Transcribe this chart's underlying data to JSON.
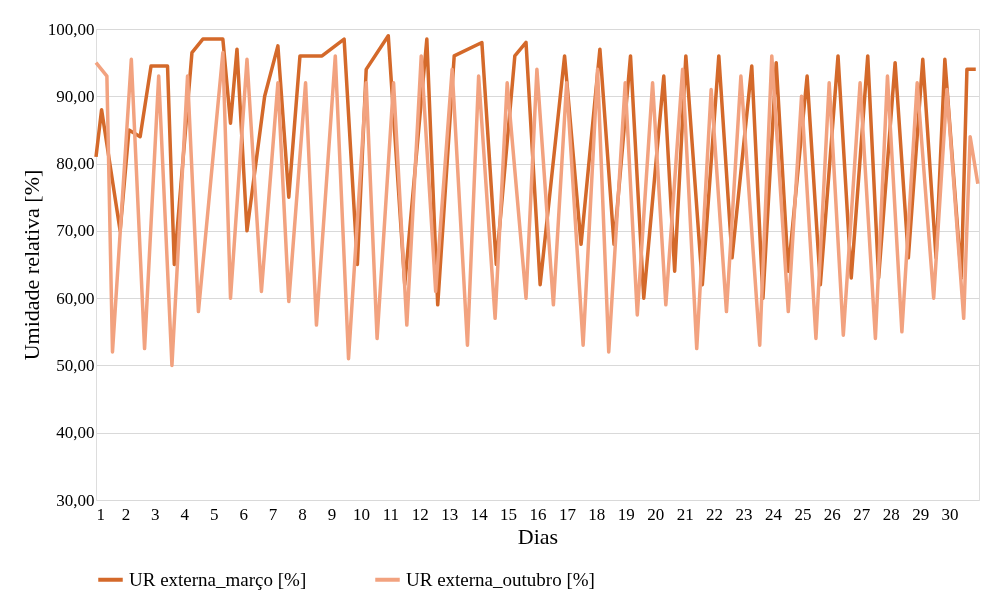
{
  "chart_data": {
    "type": "line",
    "xlabel": "Dias",
    "ylabel": "Umidade relativa [%]",
    "xlim": [
      1,
      31
    ],
    "xticks": [
      1,
      2,
      3,
      4,
      5,
      6,
      7,
      8,
      9,
      10,
      11,
      12,
      13,
      14,
      15,
      16,
      17,
      18,
      19,
      20,
      21,
      22,
      23,
      24,
      25,
      26,
      27,
      28,
      29,
      30
    ],
    "ylim": [
      30,
      100
    ],
    "yticks": [
      {
        "value": 30,
        "label": "30,00"
      },
      {
        "value": 40,
        "label": "40,00"
      },
      {
        "value": 50,
        "label": "50,00"
      },
      {
        "value": 60,
        "label": "60,00"
      },
      {
        "value": 70,
        "label": "70,00"
      },
      {
        "value": 80,
        "label": "80,00"
      },
      {
        "value": 90,
        "label": "90,00"
      },
      {
        "value": 100,
        "label": "100,00"
      }
    ],
    "grid": "y",
    "legend": "bottom",
    "marker": "none",
    "line_style": "solid",
    "series": [
      {
        "name": "UR externa_março [%]",
        "color": "#d4692a",
        "x": [
          1.0,
          1.19,
          1.82,
          2.12,
          2.5,
          2.87,
          3.43,
          3.66,
          4.26,
          4.63,
          5.31,
          5.57,
          5.79,
          6.13,
          6.73,
          7.18,
          7.55,
          7.93,
          8.68,
          9.43,
          9.88,
          10.18,
          10.93,
          11.49,
          12.24,
          12.61,
          13.17,
          14.11,
          14.6,
          15.23,
          15.61,
          16.09,
          16.92,
          17.48,
          18.12,
          18.6,
          19.16,
          19.61,
          20.29,
          20.66,
          21.04,
          21.6,
          22.16,
          22.61,
          23.28,
          23.66,
          24.11,
          24.52,
          25.16,
          25.61,
          26.21,
          26.66,
          27.22,
          27.59,
          28.15,
          28.6,
          29.09,
          29.54,
          29.84,
          30.4,
          30.59,
          30.89
        ],
        "values": [
          81,
          88,
          70,
          85,
          84,
          94.5,
          94.5,
          65,
          96.5,
          98.5,
          98.5,
          86,
          97,
          70,
          90,
          97.5,
          75,
          96,
          96,
          98.5,
          65,
          94,
          99,
          62,
          98.5,
          59,
          96,
          98,
          65,
          96,
          98,
          62,
          96,
          68,
          97,
          68,
          96,
          60,
          93,
          64,
          96,
          62,
          96,
          66,
          94.5,
          60,
          95,
          64,
          93,
          62,
          96,
          63,
          96,
          63,
          95,
          66,
          95.5,
          66,
          95.5,
          63,
          94,
          94
        ]
      },
      {
        "name": "UR externa_outubro [%]",
        "color": "#f2a27f",
        "x": [
          1.0,
          1.37,
          1.56,
          2.2,
          2.65,
          3.13,
          3.58,
          4.11,
          4.48,
          5.31,
          5.57,
          6.13,
          6.62,
          7.18,
          7.55,
          8.12,
          8.49,
          9.13,
          9.58,
          10.18,
          10.55,
          11.11,
          11.56,
          12.05,
          12.54,
          13.1,
          13.62,
          14.0,
          14.56,
          14.97,
          15.61,
          15.98,
          16.54,
          16.99,
          17.55,
          18.04,
          18.42,
          18.98,
          19.39,
          19.91,
          20.36,
          20.93,
          21.41,
          21.9,
          22.42,
          22.91,
          23.55,
          23.96,
          24.52,
          24.97,
          25.46,
          25.91,
          26.39,
          26.96,
          27.48,
          27.89,
          28.38,
          28.9,
          29.46,
          29.91,
          30.48,
          30.7,
          30.96
        ],
        "values": [
          95,
          93,
          52,
          95.5,
          52.5,
          93,
          50,
          93,
          58,
          96.5,
          60,
          95.5,
          61,
          92,
          59.5,
          92,
          56,
          96,
          51,
          92,
          54,
          92,
          56,
          96,
          61,
          94,
          53,
          93,
          57,
          92,
          60,
          94,
          59,
          92,
          53,
          94,
          52,
          92,
          57.5,
          92,
          59,
          94,
          52.5,
          91,
          58,
          93,
          53,
          96,
          58,
          90,
          54,
          92,
          54.5,
          92,
          54,
          93,
          55,
          92,
          60,
          91,
          57,
          84,
          77
        ]
      }
    ]
  }
}
